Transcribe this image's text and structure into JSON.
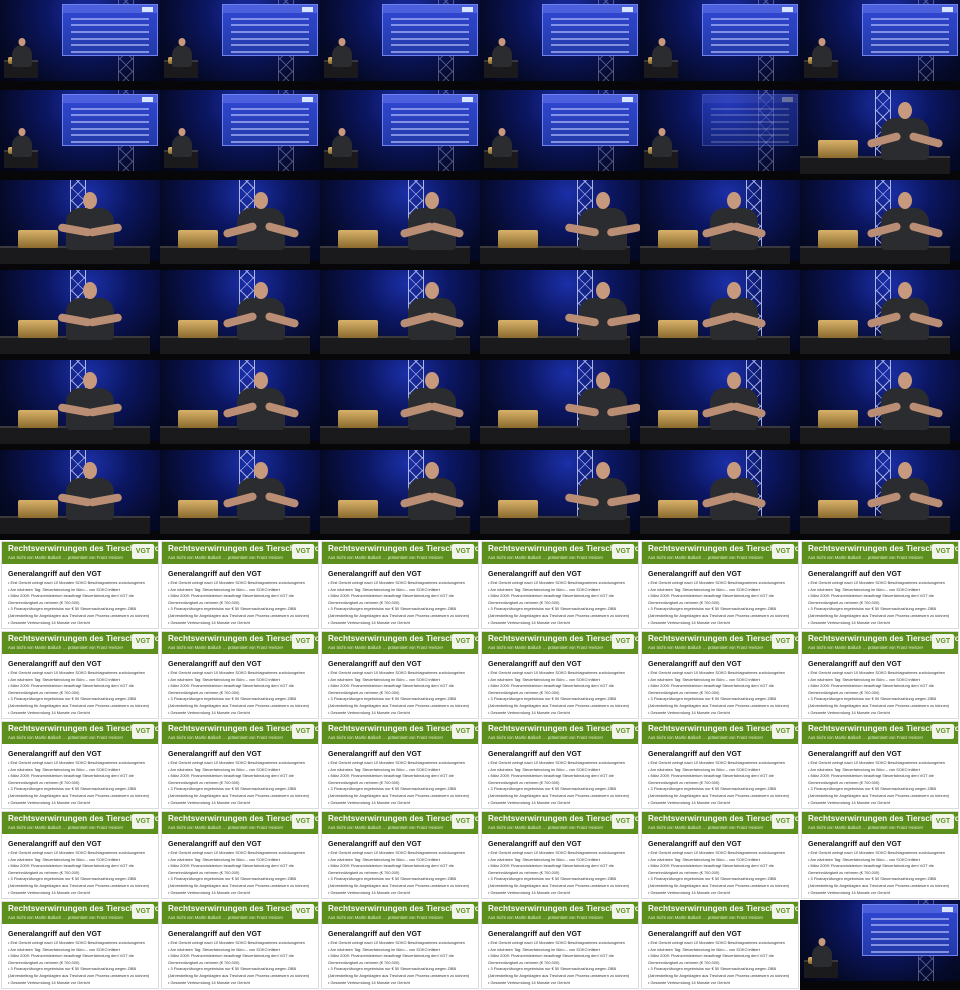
{
  "slide": {
    "title": "Rechtsverwirrungen des Tierschutzprozesses",
    "subtitle": "Aus Sicht von Martin Balluch … präsentiert von Franz Heinzer",
    "logo_text": "VGT",
    "heading": "Generalangriff auf den VGT",
    "bullets": [
      "• Erst Gericht zwingt nach 10 Monaten SOKO Beschlagnahmes zurückzugeben",
      "• Am nächsten Tag: Steuerfahndung im Büro – von SOKO initiiert",
      "• März 2009: Finanzministerium beauftragt Steuerfahndung dem VGT die",
      "  Gemeinnützigkeit zu nehmen (€ 700.000)",
      "• 3 Finanzprüfungen ergebnislos nur € 50 Steuernachzahlung wegen ZIBB",
      "  (Jahresbeitrag für Angeklagten aus Treuhand zum Prozess umsteuern zu können)",
      "• Gesamte Verleumdung 14 Monate vor Gericht"
    ]
  },
  "tiles": [
    "stage-slide",
    "stage-slide",
    "stage-slide",
    "stage-slide",
    "stage-slide",
    "stage-slide",
    "stage-slide",
    "stage-slide",
    "stage-slide",
    "stage-slide",
    "stage-fade",
    "stage-speaker",
    "stage-speaker",
    "stage-speaker",
    "stage-speaker",
    "stage-speaker",
    "stage-speaker",
    "stage-speaker",
    "stage-speaker",
    "stage-speaker",
    "stage-speaker",
    "stage-speaker",
    "stage-speaker",
    "stage-speaker",
    "stage-speaker",
    "stage-speaker",
    "stage-speaker",
    "stage-speaker",
    "stage-speaker",
    "stage-speaker",
    "stage-speaker",
    "stage-speaker",
    "stage-speaker",
    "stage-speaker",
    "stage-speaker",
    "stage-speaker",
    "slide",
    "slide",
    "slide",
    "slide",
    "slide",
    "slide",
    "slide",
    "slide",
    "slide",
    "slide",
    "slide",
    "slide",
    "slide",
    "slide",
    "slide",
    "slide",
    "slide",
    "slide",
    "slide",
    "slide",
    "slide",
    "slide",
    "slide",
    "slide",
    "slide",
    "slide",
    "slide",
    "slide",
    "slide",
    "stage-slide"
  ]
}
